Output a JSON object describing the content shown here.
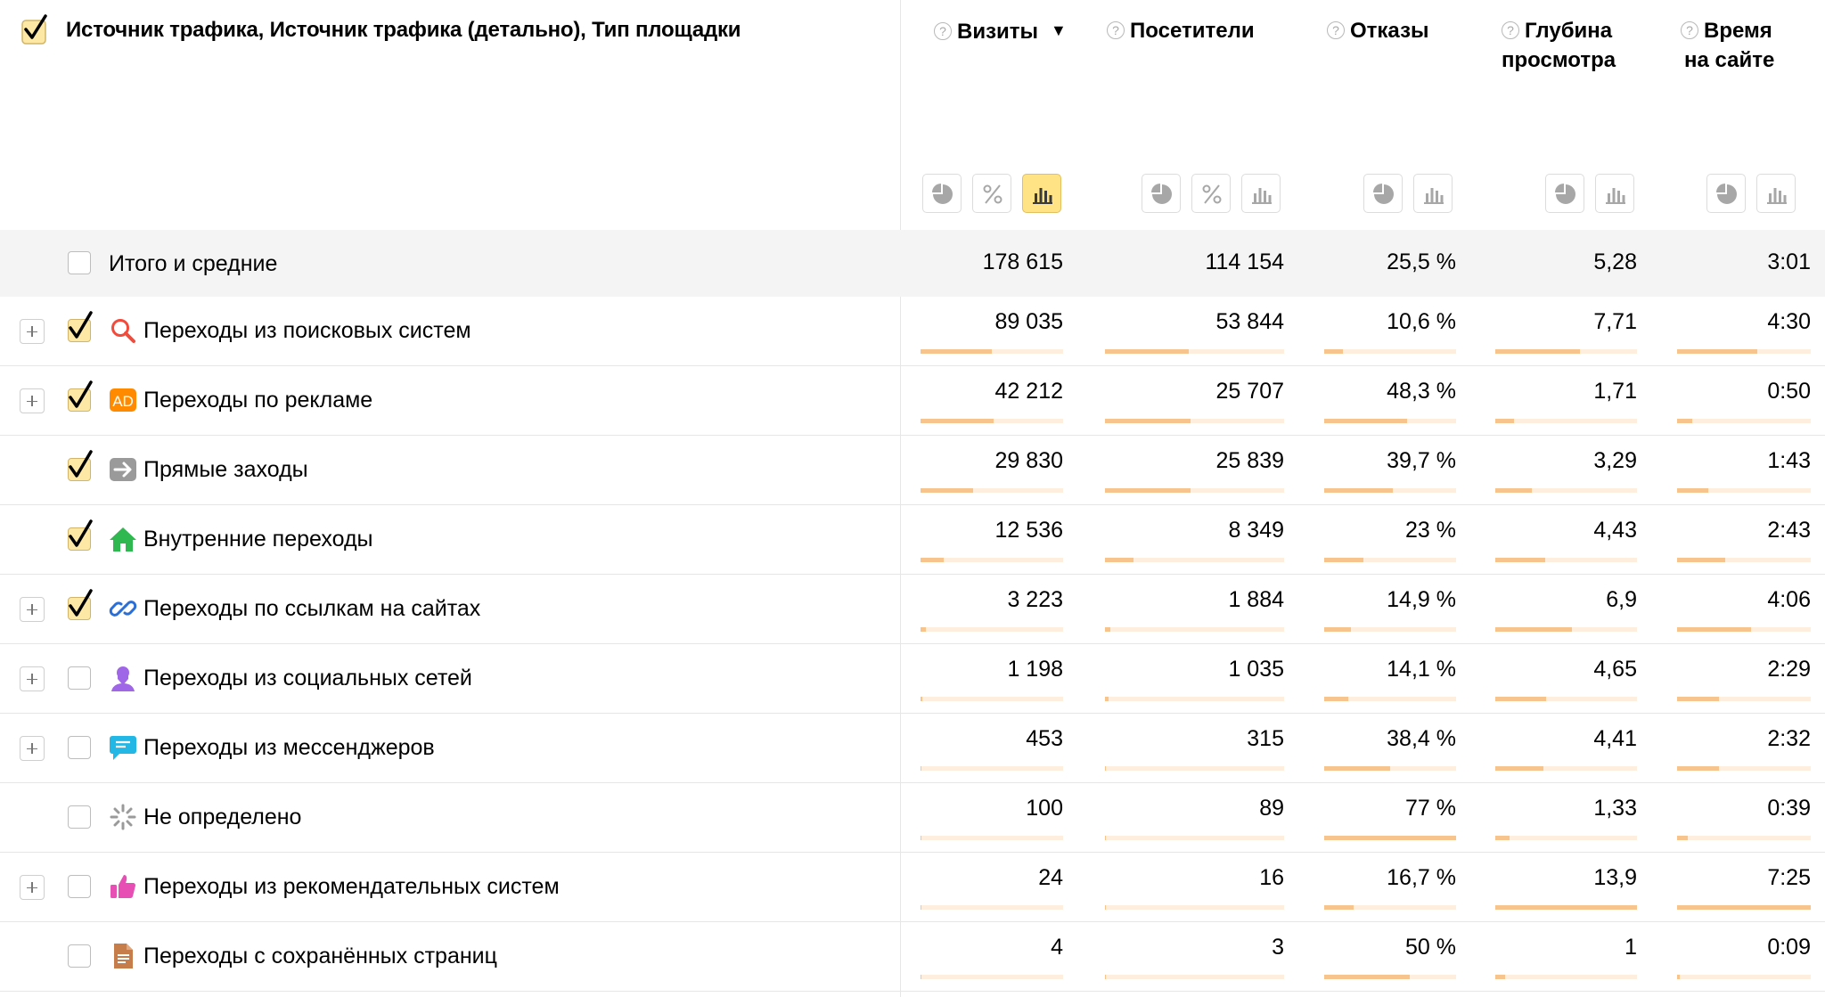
{
  "header": {
    "dimension_title": "Источник трафика, Источник трафика (детально), Тип площадки",
    "columns": [
      {
        "key": "visits",
        "line1": "Визиты",
        "line2": "",
        "sort_icon": "▼"
      },
      {
        "key": "visitors",
        "line1": "Посетители",
        "line2": ""
      },
      {
        "key": "bounces",
        "line1": "Отказы",
        "line2": ""
      },
      {
        "key": "depth",
        "line1": "Глубина",
        "line2": "просмотра"
      },
      {
        "key": "time",
        "line1": "Время",
        "line2": "на сайте"
      }
    ],
    "help_glyph": "?"
  },
  "view_buttons": {
    "visits": [
      "pie-chart-icon",
      "percent-icon",
      "bar-chart-icon"
    ],
    "visitors": [
      "pie-chart-icon",
      "percent-icon",
      "bar-chart-icon"
    ],
    "bounces": [
      "pie-chart-icon",
      "bar-chart-icon"
    ],
    "depth": [
      "pie-chart-icon",
      "bar-chart-icon"
    ],
    "time": [
      "pie-chart-icon",
      "bar-chart-icon"
    ],
    "active": "visits.bar-chart-icon"
  },
  "totals": {
    "label": "Итого и средние",
    "visits": "178 615",
    "visitors": "114 154",
    "bounces": "25,5 %",
    "depth": "5,28",
    "time": "3:01"
  },
  "rows": [
    {
      "label": "Переходы из поисковых систем",
      "icon": "search-icon",
      "expandable": true,
      "checked": true,
      "visits": "89 035",
      "visitors": "53 844",
      "bounces": "10,6 %",
      "depth": "7,71",
      "time": "4:30",
      "fill": {
        "visits": 0.5,
        "visitors": 0.47,
        "bounces": 0.14,
        "depth": 0.6,
        "time": 0.6
      }
    },
    {
      "label": "Переходы по рекламе",
      "icon": "ad-icon",
      "expandable": true,
      "checked": true,
      "visits": "42 212",
      "visitors": "25 707",
      "bounces": "48,3 %",
      "depth": "1,71",
      "time": "0:50",
      "fill": {
        "visits": 0.51,
        "visitors": 0.48,
        "bounces": 0.63,
        "depth": 0.13,
        "time": 0.11
      }
    },
    {
      "label": "Прямые заходы",
      "icon": "direct-arrow-icon",
      "expandable": false,
      "checked": true,
      "visits": "29 830",
      "visitors": "25 839",
      "bounces": "39,7 %",
      "depth": "3,29",
      "time": "1:43",
      "fill": {
        "visits": 0.37,
        "visitors": 0.48,
        "bounces": 0.52,
        "depth": 0.26,
        "time": 0.23
      }
    },
    {
      "label": "Внутренние переходы",
      "icon": "home-icon",
      "expandable": false,
      "checked": true,
      "visits": "12 536",
      "visitors": "8 349",
      "bounces": "23 %",
      "depth": "4,43",
      "time": "2:43",
      "fill": {
        "visits": 0.16,
        "visitors": 0.16,
        "bounces": 0.3,
        "depth": 0.35,
        "time": 0.36
      }
    },
    {
      "label": "Переходы по ссылкам на сайтах",
      "icon": "link-icon",
      "expandable": true,
      "checked": true,
      "visits": "3 223",
      "visitors": "1 884",
      "bounces": "14,9 %",
      "depth": "6,9",
      "time": "4:06",
      "fill": {
        "visits": 0.04,
        "visitors": 0.03,
        "bounces": 0.2,
        "depth": 0.54,
        "time": 0.55
      }
    },
    {
      "label": "Переходы из социальных сетей",
      "icon": "social-icon",
      "expandable": true,
      "checked": false,
      "visits": "1 198",
      "visitors": "1 035",
      "bounces": "14,1 %",
      "depth": "4,65",
      "time": "2:29",
      "fill": {
        "visits": 0.015,
        "visitors": 0.02,
        "bounces": 0.18,
        "depth": 0.36,
        "time": 0.31
      }
    },
    {
      "label": "Переходы из мессенджеров",
      "icon": "messenger-icon",
      "expandable": true,
      "checked": false,
      "visits": "453",
      "visitors": "315",
      "bounces": "38,4 %",
      "depth": "4,41",
      "time": "2:32",
      "fill": {
        "visits": 0.006,
        "visitors": 0.006,
        "bounces": 0.5,
        "depth": 0.34,
        "time": 0.31
      }
    },
    {
      "label": "Не определено",
      "icon": "undefined-spinner-icon",
      "expandable": false,
      "checked": false,
      "visits": "100",
      "visitors": "89",
      "bounces": "77 %",
      "depth": "1,33",
      "time": "0:39",
      "fill": {
        "visits": 0.003,
        "visitors": 0.003,
        "bounces": 1.0,
        "depth": 0.1,
        "time": 0.08
      }
    },
    {
      "label": "Переходы из рекомендательных систем",
      "icon": "thumbs-up-icon",
      "expandable": true,
      "checked": false,
      "visits": "24",
      "visitors": "16",
      "bounces": "16,7 %",
      "depth": "13,9",
      "time": "7:25",
      "fill": {
        "visits": 0.002,
        "visitors": 0.002,
        "bounces": 0.22,
        "depth": 1.0,
        "time": 1.0
      }
    },
    {
      "label": "Переходы с сохранённых страниц",
      "icon": "saved-page-icon",
      "expandable": false,
      "checked": false,
      "visits": "4",
      "visitors": "3",
      "bounces": "50 %",
      "depth": "1",
      "time": "0:09",
      "fill": {
        "visits": 0.001,
        "visitors": 0.001,
        "bounces": 0.65,
        "depth": 0.07,
        "time": 0.02
      }
    }
  ],
  "colors": {
    "checkbox_checked_bg": "#fde9a5",
    "bar_fill": "#f8c48e",
    "bar_track": "#fdeedd",
    "totals_bg": "#f4f4f4",
    "active_view_button": "#ffe385"
  }
}
